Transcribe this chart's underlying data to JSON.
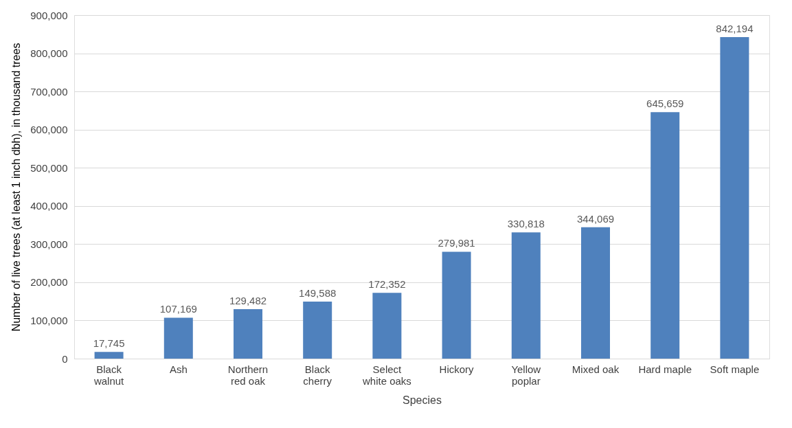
{
  "chart_data": {
    "type": "bar",
    "xlabel": "Species",
    "ylabel": "Number of live trees (at least 1 inch dbh), in thousand trees",
    "categories": [
      "Black walnut",
      "Ash",
      "Northern red oak",
      "Black cherry",
      "Select white oaks",
      "Hickory",
      "Yellow poplar",
      "Mixed oak",
      "Hard maple",
      "Soft maple"
    ],
    "values": [
      17745,
      107169,
      129482,
      149588,
      172352,
      279981,
      330818,
      344069,
      645659,
      842194
    ],
    "value_labels": [
      "17,745",
      "107,169",
      "129,482",
      "149,588",
      "172,352",
      "279,981",
      "330,818",
      "344,069",
      "645,659",
      "842,194"
    ],
    "color": "#4f81bd",
    "ylim": [
      0,
      900000
    ],
    "yticks": [
      0,
      {
        "value": 100000,
        "label": "100,000"
      },
      {
        "value": 200000,
        "label": "200,000"
      },
      {
        "value": 300000,
        "label": "300,000"
      },
      {
        "value": 400000,
        "label": "400,000"
      },
      {
        "value": 500000,
        "label": "500,000"
      },
      {
        "value": 600000,
        "label": "600,000"
      },
      {
        "value": 700000,
        "label": "700,000"
      },
      {
        "value": 800000,
        "label": "800,000"
      },
      {
        "value": 900000,
        "label": "900,000"
      }
    ],
    "grid": "y"
  }
}
